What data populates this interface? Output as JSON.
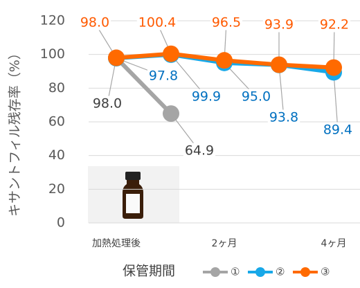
{
  "chart_data": {
    "type": "line",
    "y_label": "キサントフィル残存率（%）",
    "x_label": "保管期間",
    "categories": [
      "加熱処理後",
      null,
      "2ヶ月",
      null,
      "4ヶ月"
    ],
    "ylim": [
      0,
      120
    ],
    "yticks": [
      0,
      20,
      40,
      60,
      80,
      100,
      120
    ],
    "grid": true,
    "series": [
      {
        "name": "①",
        "color": "#a5a5a5",
        "label_color": "#404040",
        "values": [
          98,
          64.9,
          null,
          null,
          null
        ],
        "value_labels": [
          "98.0",
          "64.9",
          null,
          null,
          null
        ]
      },
      {
        "name": "②",
        "color": "#18a8e8",
        "label_color": "#0070c0",
        "values": [
          97.8,
          99.9,
          95,
          93.8,
          89.4
        ],
        "value_labels": [
          "97.8",
          "99.9",
          "95.0",
          "93.8",
          "89.4"
        ]
      },
      {
        "name": "③",
        "color": "#ff6a00",
        "label_color": "#ff5a00",
        "values": [
          98,
          100.4,
          96.5,
          93.9,
          92.2
        ],
        "value_labels": [
          "98.0",
          "100.4",
          "96.5",
          "93.9",
          "92.2"
        ]
      }
    ]
  }
}
